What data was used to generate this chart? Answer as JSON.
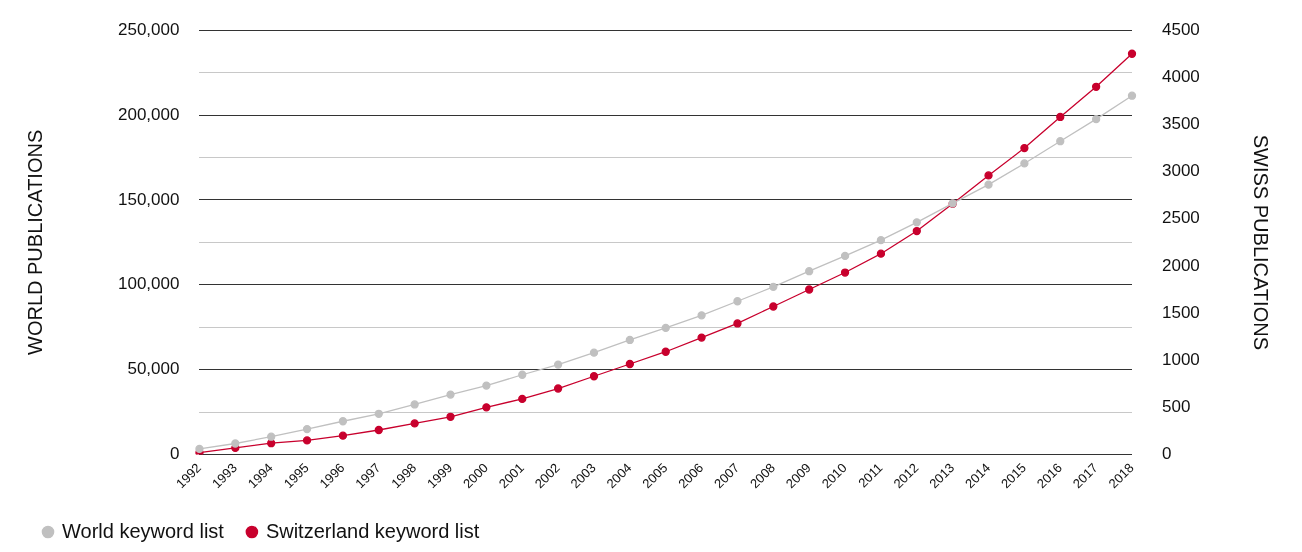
{
  "chart_data": {
    "type": "line",
    "ylabel": "WORLD PUBLICATIONS",
    "y2label": "SWISS PUBLICATIONS",
    "categories": [
      "1992",
      "1993",
      "1994",
      "1995",
      "1996",
      "1997",
      "1998",
      "1999",
      "2000",
      "2001",
      "2002",
      "2003",
      "2004",
      "2005",
      "2006",
      "2007",
      "2008",
      "2009",
      "2010",
      "2011",
      "2012",
      "2013",
      "2014",
      "2015",
      "2016",
      "2017",
      "2018"
    ],
    "series": [
      {
        "name": "World keyword list",
        "color": "#c0c0c0",
        "values": [
          3300,
          6500,
          10500,
          15000,
          19600,
          24000,
          29500,
          35300,
          40600,
          47000,
          53000,
          60000,
          67500,
          74600,
          82000,
          90300,
          98800,
          108000,
          117000,
          126300,
          136800,
          148000,
          159000,
          171500,
          184600,
          197600,
          211400
        ]
      },
      {
        "name": "Switzerland keyword list",
        "color": "#c8002d",
        "axis": "y2",
        "values": [
          20,
          70,
          120,
          150,
          200,
          260,
          330,
          400,
          500,
          590,
          700,
          830,
          960,
          1090,
          1240,
          1390,
          1570,
          1750,
          1930,
          2130,
          2370,
          2660,
          2960,
          3250,
          3580,
          3900,
          4250
        ]
      }
    ],
    "ylim": [
      0,
      250000
    ],
    "yticks": [
      {
        "value": 0,
        "label": "0"
      },
      {
        "value": 25000,
        "label": null
      },
      {
        "value": 50000,
        "label": "50,000"
      },
      {
        "value": 75000,
        "label": null
      },
      {
        "value": 100000,
        "label": "100,000"
      },
      {
        "value": 125000,
        "label": null
      },
      {
        "value": 150000,
        "label": "150,000"
      },
      {
        "value": 175000,
        "label": null
      },
      {
        "value": 200000,
        "label": "200,000"
      },
      {
        "value": 225000,
        "label": null
      },
      {
        "value": 250000,
        "label": "250,000"
      }
    ],
    "y2lim": [
      0,
      4500
    ],
    "y2ticks": [
      0,
      500,
      1000,
      1500,
      2000,
      2500,
      3000,
      3500,
      4000,
      4500
    ],
    "grid": "y",
    "legend": "bottom",
    "marker": "circle",
    "line_style": "solid"
  }
}
